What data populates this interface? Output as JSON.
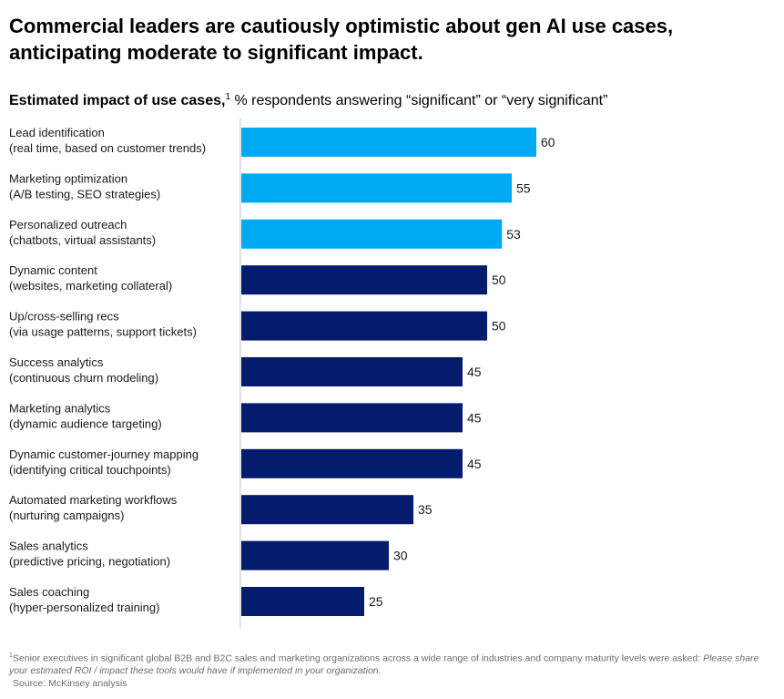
{
  "title": "Commercial leaders are cautiously optimistic about gen AI use cases, anticipating moderate to significant impact.",
  "subtitle": {
    "lead": "Estimated impact of use cases,",
    "marker": "1",
    "rest": " % respondents answering “significant” or “very significant”"
  },
  "colors": {
    "highlight": "#00a9f4",
    "base": "#051c6e",
    "axis": "#c8c8c8",
    "text": "#1a1a1a",
    "footnote": "#6b6b6b"
  },
  "chart_data": {
    "type": "bar",
    "orientation": "horizontal",
    "unit": "% respondents",
    "xlim": [
      0,
      60
    ],
    "categories": [
      {
        "name": "Lead identification",
        "detail": "(real time, based on customer trends)",
        "value": 60,
        "highlight": true
      },
      {
        "name": "Marketing optimization",
        "detail": "(A/B testing, SEO strategies)",
        "value": 55,
        "highlight": true
      },
      {
        "name": "Personalized outreach",
        "detail": "(chatbots, virtual assistants)",
        "value": 53,
        "highlight": true
      },
      {
        "name": "Dynamic content",
        "detail": "(websites, marketing collateral)",
        "value": 50,
        "highlight": false
      },
      {
        "name": "Up/cross-selling recs",
        "detail": "(via usage patterns, support tickets)",
        "value": 50,
        "highlight": false
      },
      {
        "name": "Success analytics",
        "detail": "(continuous churn modeling)",
        "value": 45,
        "highlight": false
      },
      {
        "name": "Marketing analytics",
        "detail": "(dynamic audience targeting)",
        "value": 45,
        "highlight": false
      },
      {
        "name": "Dynamic customer-journey mapping",
        "detail": "(identifying critical touchpoints)",
        "value": 45,
        "highlight": false
      },
      {
        "name": "Automated marketing workflows",
        "detail": "(nurturing campaigns)",
        "value": 35,
        "highlight": false
      },
      {
        "name": "Sales analytics",
        "detail": "(predictive pricing, negotiation)",
        "value": 30,
        "highlight": false
      },
      {
        "name": "Sales coaching",
        "detail": "(hyper-personalized training)",
        "value": 25,
        "highlight": false
      }
    ]
  },
  "footnote": {
    "marker": "1",
    "text": "Senior executives in significant global B2B and B2C sales and marketing organizations across a wide range of industries and company maturity levels were asked:",
    "question": "Please share your estimated ROI / impact these tools would have if implemented in your organization.",
    "source": "Source: McKinsey analysis"
  }
}
